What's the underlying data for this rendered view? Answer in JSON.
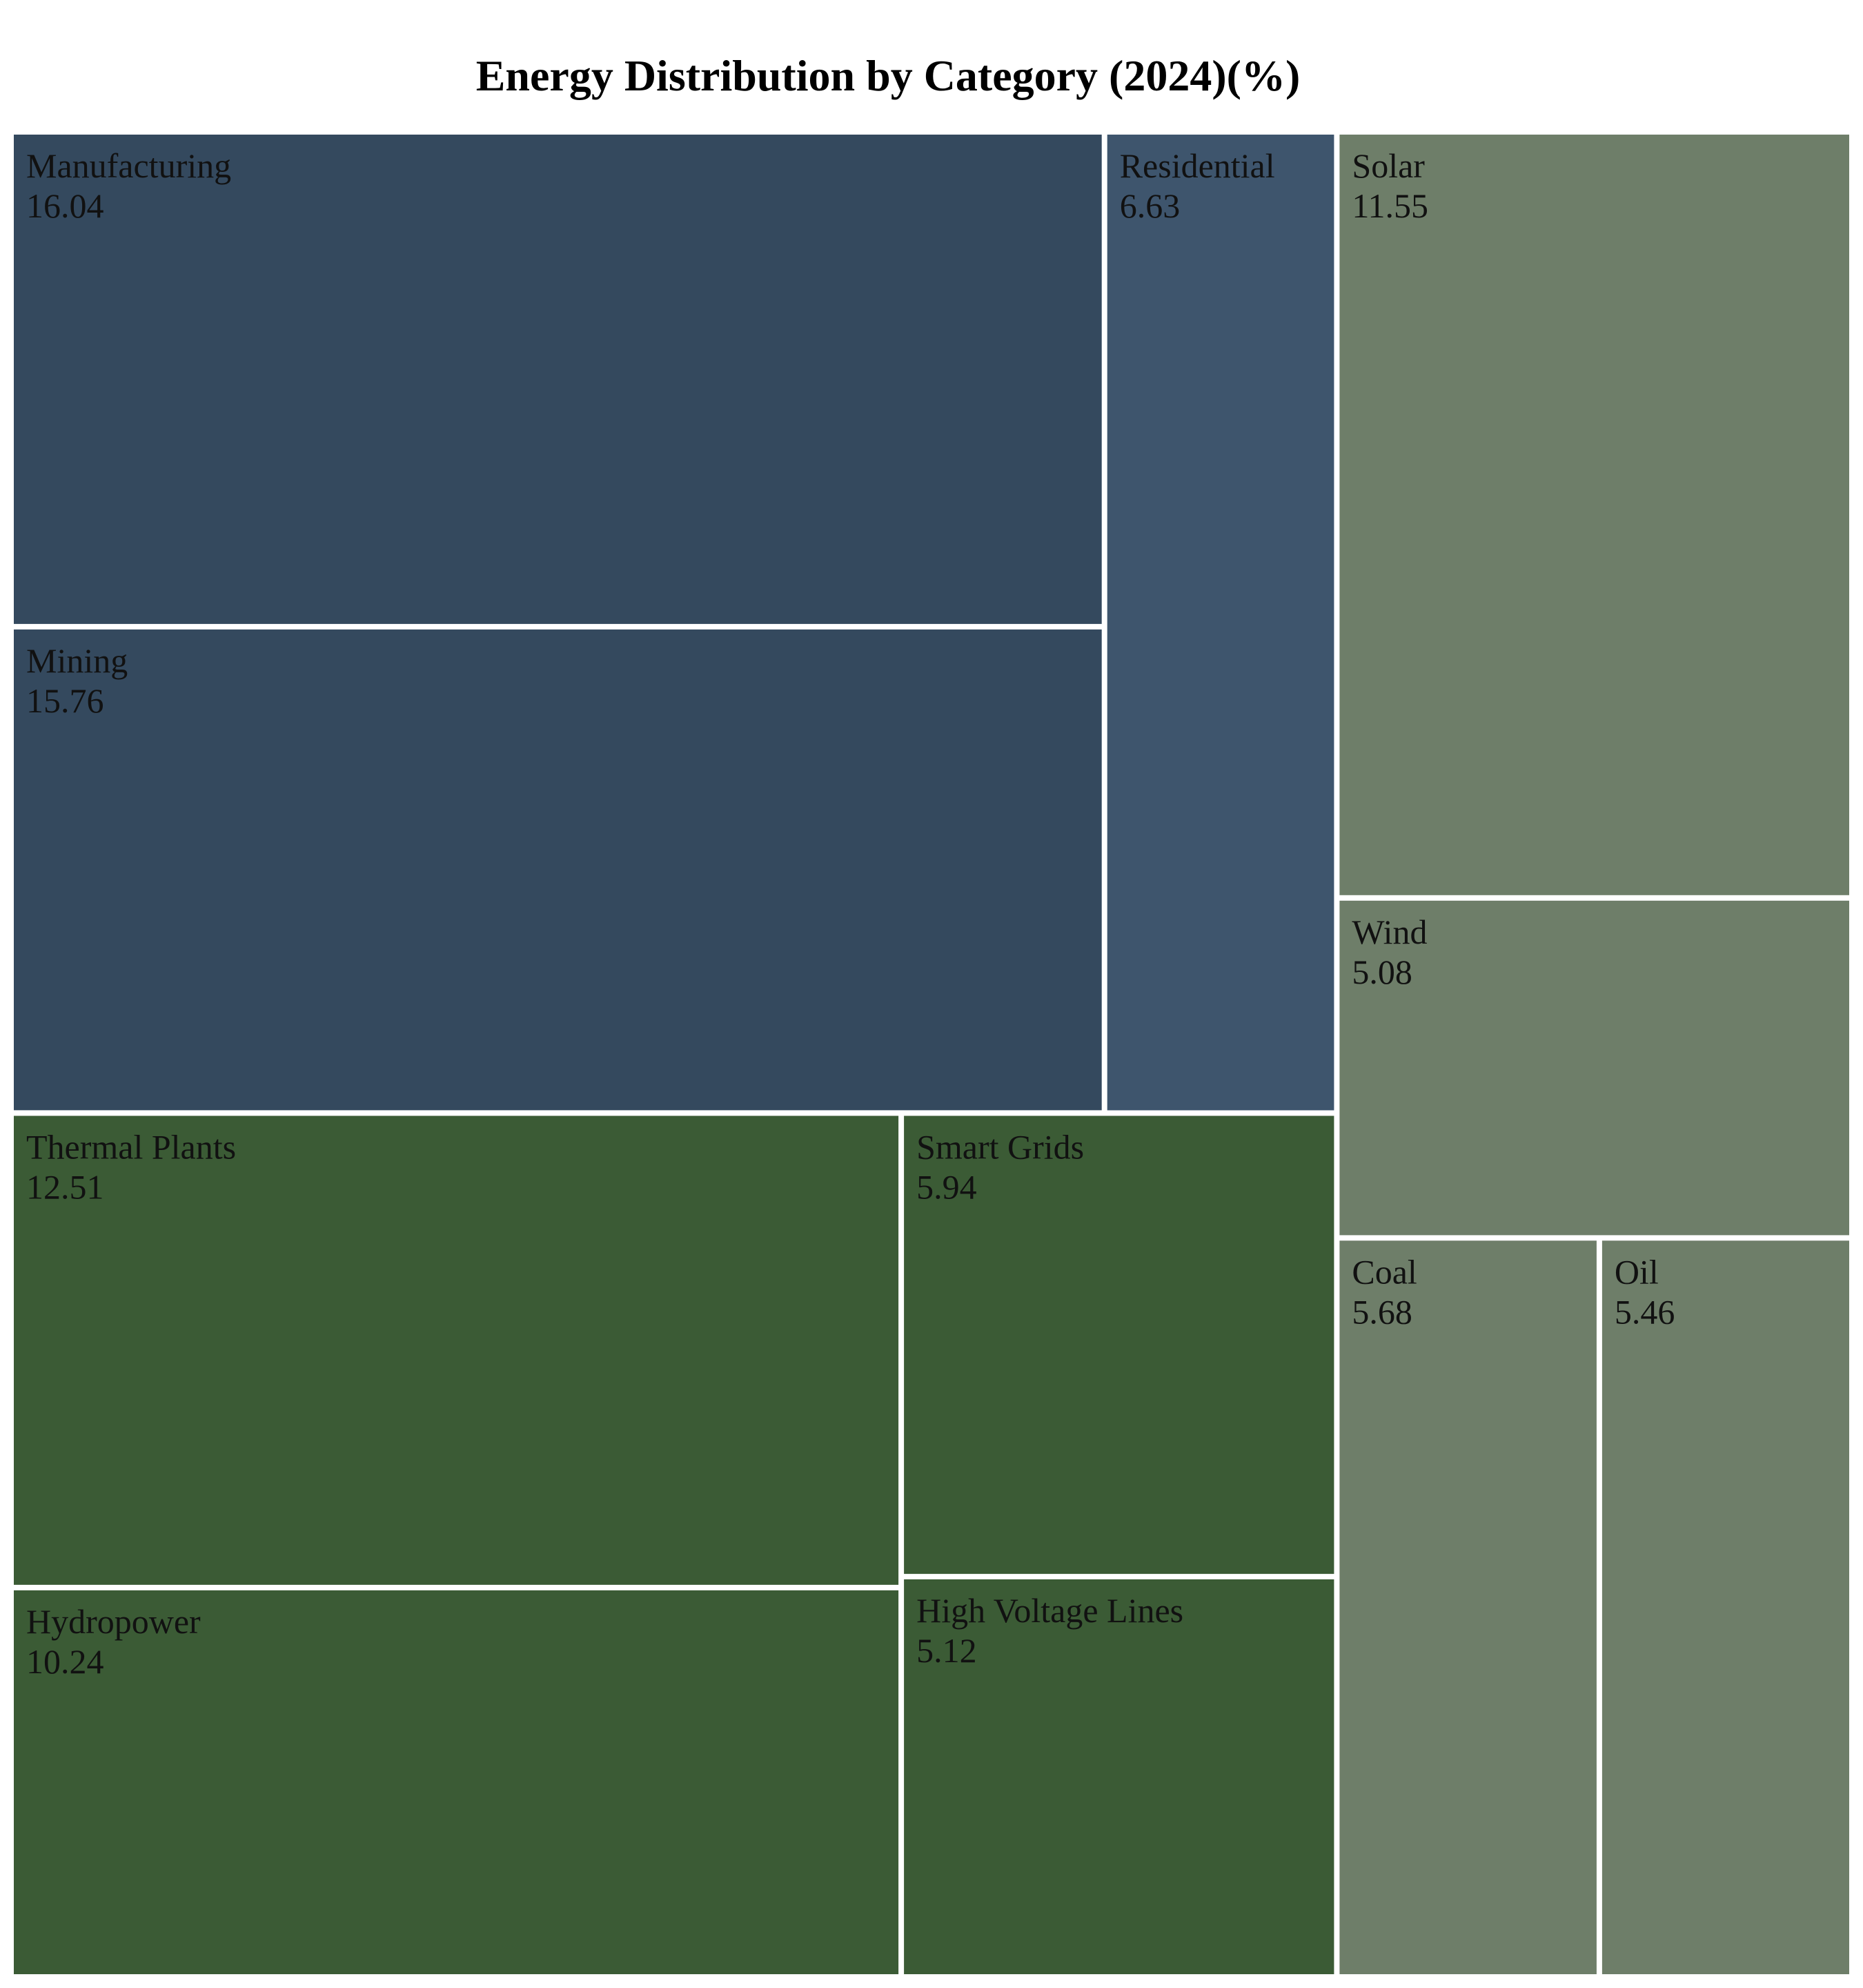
{
  "chart_data": {
    "type": "treemap",
    "title": "Energy Distribution by Category (2024)(%)",
    "groups": [
      {
        "color": "#34495e",
        "items": [
          {
            "label": "Manufacturing",
            "value": 16.04,
            "color": "#34495e"
          },
          {
            "label": "Mining",
            "value": 15.76,
            "color": "#34495e"
          },
          {
            "label": "Residential",
            "value": 6.63,
            "color": "#3e556d"
          }
        ]
      },
      {
        "color": "#3b5b35",
        "items": [
          {
            "label": "Thermal Plants",
            "value": 12.51,
            "color": "#3b5b35"
          },
          {
            "label": "Hydropower",
            "value": 10.24,
            "color": "#3b5b35"
          },
          {
            "label": "Smart Grids",
            "value": 5.94,
            "color": "#3b5b35"
          },
          {
            "label": "High Voltage Lines",
            "value": 5.12,
            "color": "#3b5b35"
          }
        ]
      },
      {
        "color": "#6e7e69",
        "items": [
          {
            "label": "Solar",
            "value": 11.55,
            "color": "#6e7e69"
          },
          {
            "label": "Wind",
            "value": 5.08,
            "color": "#6e7e69"
          },
          {
            "label": "Coal",
            "value": 5.68,
            "color": "#6e7e69"
          },
          {
            "label": "Oil",
            "value": 5.46,
            "color": "#6e7e69"
          }
        ]
      }
    ]
  }
}
